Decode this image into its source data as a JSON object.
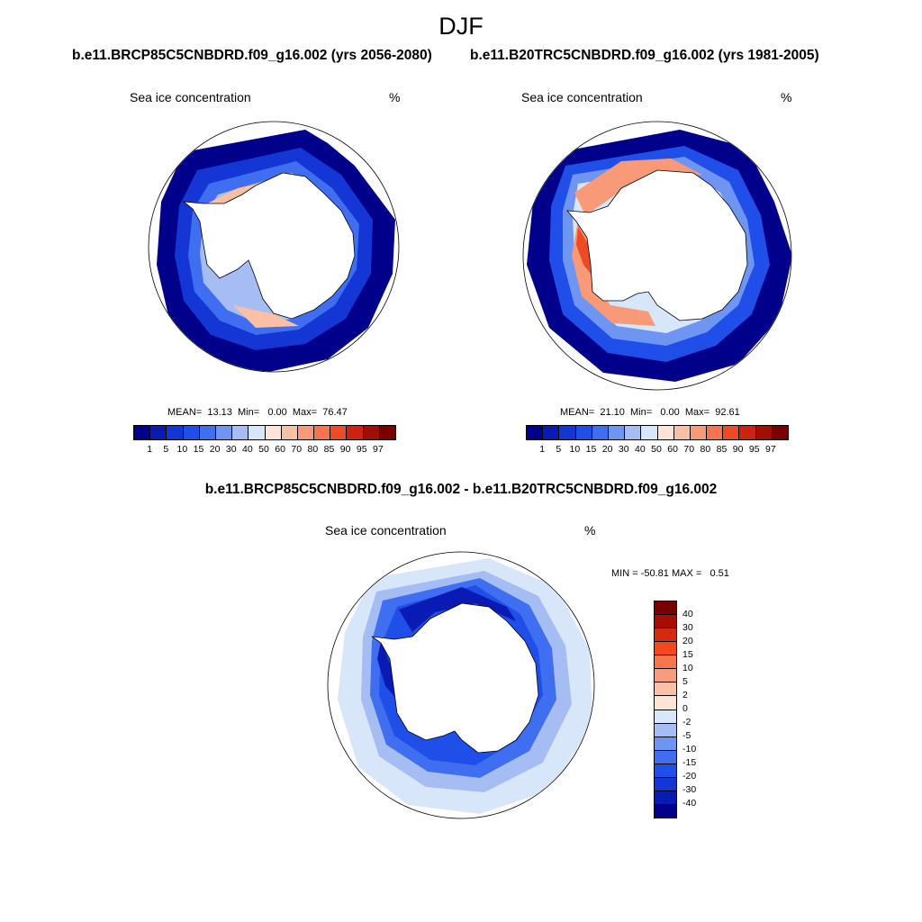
{
  "season": "DJF",
  "panel_left": {
    "case": "b.e11.BRCP85C5CNBDRD.f09_g16.002 (yrs 2056-2080)",
    "variable": "Sea ice concentration",
    "units": "%",
    "mean_label": "MEAN=",
    "mean": "13.13",
    "min_label": "Min=",
    "min": "0.00",
    "max_label": "Max=",
    "max": "76.47"
  },
  "panel_right": {
    "case": "b.e11.B20TRC5CNBDRD.f09_g16.002 (yrs 1981-2005)",
    "variable": "Sea ice concentration",
    "units": "%",
    "mean_label": "MEAN=",
    "mean": "21.10",
    "min_label": "Min=",
    "min": "0.00",
    "max_label": "Max=",
    "max": "92.61"
  },
  "panel_diff": {
    "title": "b.e11.BRCP85C5CNBDRD.f09_g16.002 - b.e11.B20TRC5CNBDRD.f09_g16.002",
    "variable": "Sea ice concentration",
    "units": "%",
    "min_label": "MIN =",
    "min": "-50.81",
    "max_label": "MAX =",
    "max": "0.51"
  },
  "colorbar_conc": {
    "levels": [
      "1",
      "5",
      "10",
      "15",
      "20",
      "30",
      "40",
      "50",
      "60",
      "70",
      "80",
      "85",
      "90",
      "95",
      "97"
    ],
    "colors": [
      "#00008a",
      "#0a1bb5",
      "#1336d4",
      "#1f4fe8",
      "#3f6ff0",
      "#6f95f2",
      "#a6bdf4",
      "#d8e6fa",
      "#fde4d6",
      "#fbbfa3",
      "#f89a77",
      "#f6754e",
      "#ee4a25",
      "#cc2410",
      "#a10e06",
      "#7a0000"
    ]
  },
  "colorbar_diff": {
    "levels": [
      "40",
      "30",
      "20",
      "15",
      "10",
      "5",
      "2",
      "0",
      "-2",
      "-5",
      "-10",
      "-15",
      "-20",
      "-30",
      "-40"
    ],
    "colors": [
      "#7a0000",
      "#a80d05",
      "#d42a10",
      "#f5481c",
      "#f6774e",
      "#f89d7b",
      "#fbc1a6",
      "#fde4d6",
      "#d8e6fa",
      "#a6bdf4",
      "#6f95f2",
      "#3f6ff0",
      "#1f4fe8",
      "#1336d4",
      "#0a1bb5",
      "#00008a"
    ]
  }
}
